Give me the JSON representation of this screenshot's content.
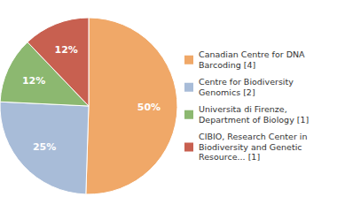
{
  "chart_data": {
    "type": "pie",
    "categories": [
      "Canadian Centre for DNA\nBarcoding [4]",
      "Centre for Biodiversity\nGenomics [2]",
      "Universita di Firenze,\nDepartment of Biology [1]",
      "CIBIO, Research Center in\nBiodiversity and Genetic\nResource... [1]"
    ],
    "values": [
      50,
      25,
      12,
      12
    ],
    "value_labels": [
      "50%",
      "25%",
      "12%",
      "12%"
    ],
    "colors": [
      "#f0a868",
      "#a8bcd8",
      "#8cb870",
      "#c86050"
    ],
    "data_labels": true,
    "legend": "right"
  }
}
